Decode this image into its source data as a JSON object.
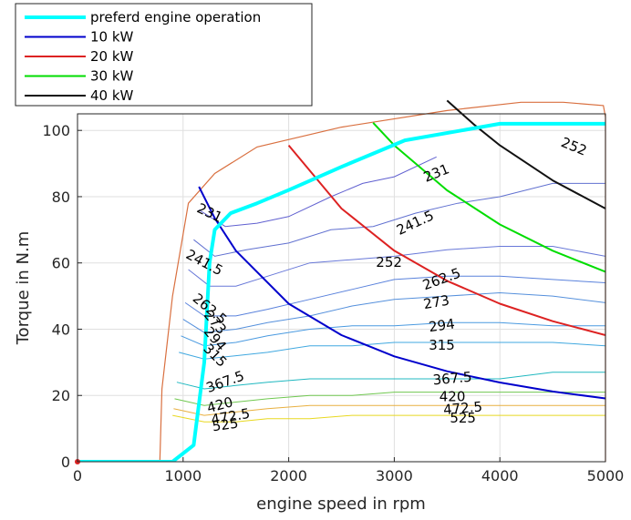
{
  "chart_data": {
    "type": "line",
    "title": "",
    "xlabel": "engine speed in rpm",
    "ylabel": "Torque in N.m",
    "xlim": [
      0,
      5000
    ],
    "ylim": [
      0,
      105
    ],
    "xticks": [
      0,
      1000,
      2000,
      3000,
      4000,
      5000
    ],
    "yticks": [
      0,
      20,
      40,
      60,
      80,
      100
    ],
    "grid": true,
    "legend_position": "top-left",
    "series": [
      {
        "name": "preferd engine operation",
        "color": "#00ffff",
        "x": [
          0,
          900,
          1100,
          1200,
          1250,
          1300,
          1450,
          1700,
          2000,
          2500,
          3100,
          4000,
          5000
        ],
        "y": [
          0,
          0,
          5,
          30,
          60,
          70,
          75,
          78,
          82,
          89,
          97,
          102,
          102
        ]
      },
      {
        "name": "10 kW",
        "color": "#0000cc",
        "x": [
          1150,
          1300,
          1500,
          2000,
          2500,
          3000,
          3500,
          4000,
          4500,
          5000
        ],
        "y": [
          83,
          73.5,
          63.7,
          47.7,
          38.2,
          31.8,
          27.3,
          23.9,
          21.2,
          19.1
        ]
      },
      {
        "name": "20 kW",
        "color": "#dd2222",
        "x": [
          2000,
          2500,
          3000,
          3500,
          4000,
          4500,
          5000
        ],
        "y": [
          95.5,
          76.4,
          63.7,
          54.6,
          47.7,
          42.4,
          38.2
        ]
      },
      {
        "name": "30 kW",
        "color": "#00dd00",
        "x": [
          2800,
          3000,
          3500,
          4000,
          4500,
          5000
        ],
        "y": [
          102.3,
          95.5,
          81.9,
          71.6,
          63.7,
          57.3
        ]
      },
      {
        "name": "40 kW",
        "color": "#111111",
        "x": [
          3500,
          3750,
          4000,
          4500,
          5000
        ],
        "y": [
          109,
          101.9,
          95.5,
          84.9,
          76.4
        ]
      }
    ],
    "boundary": {
      "color": "#d97040",
      "x": [
        780,
        800,
        900,
        1050,
        1300,
        1700,
        2500,
        3500,
        4200,
        4600,
        4980,
        5000,
        5000
      ],
      "y": [
        0,
        22,
        50,
        78,
        87,
        95,
        101,
        106,
        108.5,
        108.5,
        107.5,
        104,
        0
      ]
    },
    "contours": [
      {
        "label": "231",
        "color": "#6060d0",
        "x": [
          1150,
          1400,
          1700,
          2000,
          2400,
          2700,
          3000,
          3400
        ],
        "y": [
          76,
          71,
          72,
          74,
          80,
          84,
          86,
          92
        ]
      },
      {
        "label": "241.5",
        "color": "#6070d0",
        "x": [
          1100,
          1300,
          1600,
          2000,
          2400,
          2800,
          3200,
          3600,
          4000,
          4500,
          5000
        ],
        "y": [
          67,
          62,
          64,
          66,
          70,
          71,
          75,
          78,
          80,
          84,
          84
        ]
      },
      {
        "label": "252",
        "color": "#6878d8",
        "x": [
          1050,
          1250,
          1500,
          1800,
          2200,
          2600,
          3000,
          3500,
          4000,
          4500,
          5000
        ],
        "y": [
          58,
          53,
          53,
          56,
          60,
          61,
          62,
          64,
          65,
          65,
          62
        ]
      },
      {
        "label": "262.5",
        "color": "#5a82dc",
        "x": [
          1020,
          1200,
          1500,
          1800,
          2200,
          2600,
          3000,
          3500,
          4000,
          4500,
          5000
        ],
        "y": [
          48,
          44,
          44,
          46,
          49,
          52,
          55,
          56,
          56,
          55,
          54
        ]
      },
      {
        "label": "273",
        "color": "#5590dc",
        "x": [
          1000,
          1200,
          1500,
          1800,
          2200,
          2600,
          3000,
          3500,
          4000,
          4500,
          5000
        ],
        "y": [
          43,
          39,
          40,
          42,
          44,
          47,
          49,
          50,
          51,
          50,
          48
        ]
      },
      {
        "label": "294",
        "color": "#4a9ae0",
        "x": [
          980,
          1200,
          1500,
          1800,
          2200,
          2600,
          3000,
          3500,
          4000,
          4500,
          5000
        ],
        "y": [
          38,
          35,
          36,
          38,
          40,
          41,
          41,
          42,
          42,
          41,
          41
        ]
      },
      {
        "label": "315",
        "color": "#40a8e0",
        "x": [
          960,
          1200,
          1500,
          1800,
          2200,
          2600,
          3000,
          3500,
          4000,
          4500,
          5000
        ],
        "y": [
          33,
          31,
          32,
          33,
          35,
          35,
          36,
          36,
          36,
          36,
          35
        ]
      },
      {
        "label": "367.5",
        "color": "#20b8c0",
        "x": [
          940,
          1200,
          1500,
          1800,
          2200,
          2600,
          3000,
          3500,
          4000,
          4500,
          5000
        ],
        "y": [
          24,
          22,
          23,
          24,
          25,
          25,
          25,
          25,
          25,
          27,
          27
        ]
      },
      {
        "label": "420",
        "color": "#70c850",
        "x": [
          920,
          1200,
          1500,
          1800,
          2200,
          2600,
          3000,
          3500,
          4000,
          4500,
          5000
        ],
        "y": [
          19,
          17,
          18,
          19,
          20,
          20,
          21,
          21,
          21,
          21,
          21
        ]
      },
      {
        "label": "472.5",
        "color": "#e8b040",
        "x": [
          910,
          1200,
          1500,
          1800,
          2200,
          2600,
          3000,
          3500,
          4000,
          4500,
          5000
        ],
        "y": [
          16,
          14,
          15,
          16,
          17,
          17,
          17,
          17,
          17,
          17,
          17
        ]
      },
      {
        "label": "525",
        "color": "#e8d820",
        "x": [
          900,
          1200,
          1500,
          1800,
          2200,
          2600,
          3000,
          3500,
          4000,
          4500,
          5000
        ],
        "y": [
          14,
          12,
          12,
          13,
          13,
          14,
          14,
          14,
          14,
          14,
          14
        ]
      }
    ],
    "contour_labels": [
      {
        "text": "231",
        "x": 1250,
        "y": 75,
        "angle": 25
      },
      {
        "text": "231",
        "x": 3400,
        "y": 87,
        "angle": -22
      },
      {
        "text": "241.5",
        "x": 1200,
        "y": 60,
        "angle": 28
      },
      {
        "text": "241.5",
        "x": 3200,
        "y": 72,
        "angle": -25
      },
      {
        "text": "252",
        "x": 4700,
        "y": 95,
        "angle": 22
      },
      {
        "text": "252",
        "x": 2950,
        "y": 60,
        "angle": 0
      },
      {
        "text": "262.5",
        "x": 1250,
        "y": 46,
        "angle": 40
      },
      {
        "text": "262.5",
        "x": 3450,
        "y": 55,
        "angle": -20
      },
      {
        "text": "273",
        "x": 1300,
        "y": 42,
        "angle": 50
      },
      {
        "text": "273",
        "x": 3400,
        "y": 48,
        "angle": -10
      },
      {
        "text": "294",
        "x": 1300,
        "y": 37,
        "angle": 50
      },
      {
        "text": "294",
        "x": 3450,
        "y": 41,
        "angle": -8
      },
      {
        "text": "315",
        "x": 1300,
        "y": 32,
        "angle": 45
      },
      {
        "text": "315",
        "x": 3450,
        "y": 35,
        "angle": 0
      },
      {
        "text": "367.5",
        "x": 1400,
        "y": 24,
        "angle": -20
      },
      {
        "text": "367.5",
        "x": 3550,
        "y": 25,
        "angle": -5
      },
      {
        "text": "420",
        "x": 1350,
        "y": 17,
        "angle": -15
      },
      {
        "text": "420",
        "x": 3550,
        "y": 19.5,
        "angle": 0
      },
      {
        "text": "472.5",
        "x": 1450,
        "y": 13.5,
        "angle": -10
      },
      {
        "text": "472.5",
        "x": 3650,
        "y": 16,
        "angle": -5
      },
      {
        "text": "525",
        "x": 1400,
        "y": 11,
        "angle": -8
      },
      {
        "text": "525",
        "x": 3650,
        "y": 13,
        "angle": 0
      }
    ]
  }
}
